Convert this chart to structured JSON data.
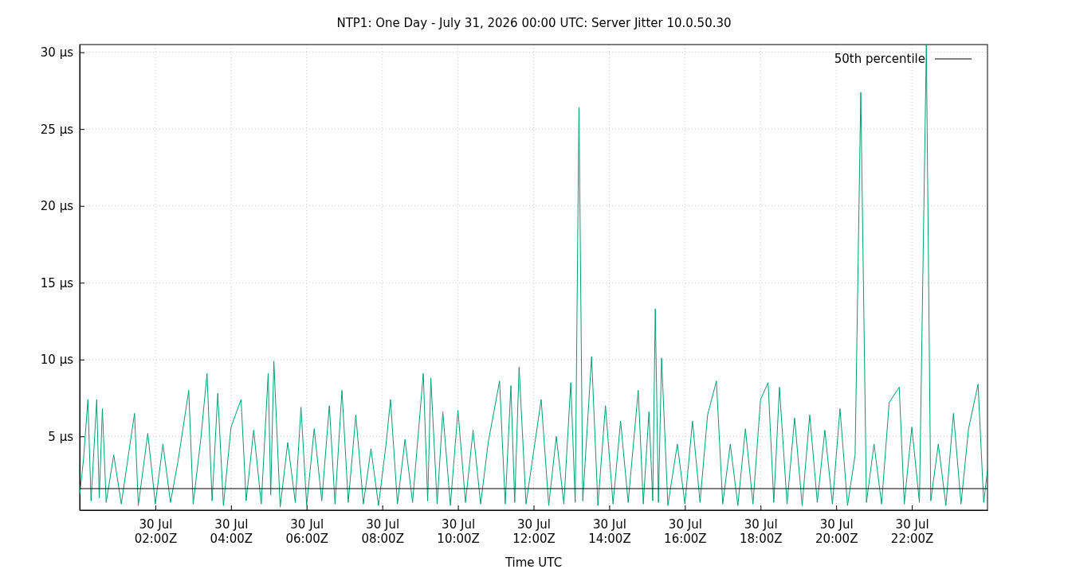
{
  "chart_data": {
    "type": "line",
    "title": "NTP1: One Day - July 31, 2026 00:00 UTC: Server Jitter 10.0.50.30",
    "xlabel": "Time UTC",
    "xlim": [
      "2026-07-30T00:00",
      "2026-07-31T00:00"
    ],
    "ylim": [
      0.2,
      30.5
    ],
    "xticks": [
      {
        "value": "2026-07-30T02:00",
        "label": "30 Jul\n02:00Z"
      },
      {
        "value": "2026-07-30T04:00",
        "label": "30 Jul\n04:00Z"
      },
      {
        "value": "2026-07-30T06:00",
        "label": "30 Jul\n06:00Z"
      },
      {
        "value": "2026-07-30T08:00",
        "label": "30 Jul\n08:00Z"
      },
      {
        "value": "2026-07-30T10:00",
        "label": "30 Jul\n10:00Z"
      },
      {
        "value": "2026-07-30T12:00",
        "label": "30 Jul\n12:00Z"
      },
      {
        "value": "2026-07-30T14:00",
        "label": "30 Jul\n14:00Z"
      },
      {
        "value": "2026-07-30T16:00",
        "label": "30 Jul\n16:00Z"
      },
      {
        "value": "2026-07-30T18:00",
        "label": "30 Jul\n18:00Z"
      },
      {
        "value": "2026-07-30T20:00",
        "label": "30 Jul\n20:00Z"
      },
      {
        "value": "2026-07-30T22:00",
        "label": "30 Jul\n22:00Z"
      }
    ],
    "yticks": [
      {
        "value": 5,
        "label": "5 µs"
      },
      {
        "value": 10,
        "label": "10 µs"
      },
      {
        "value": 15,
        "label": "15 µs"
      },
      {
        "value": 20,
        "label": "20 µs"
      },
      {
        "value": 25,
        "label": "25 µs"
      },
      {
        "value": 30,
        "label": "30 µs"
      }
    ],
    "grid": true,
    "legend": "top right",
    "series": [
      {
        "color": "#00a070",
        "x": [
          "2026-07-30T00:00",
          "2026-07-30T00:06",
          "2026-07-30T00:13",
          "2026-07-30T00:18",
          "2026-07-30T00:27",
          "2026-07-30T00:31",
          "2026-07-30T00:36",
          "2026-07-30T00:42",
          "2026-07-30T00:54",
          "2026-07-30T01:06",
          "2026-07-30T01:18",
          "2026-07-30T01:27",
          "2026-07-30T01:33",
          "2026-07-30T01:48",
          "2026-07-30T02:00",
          "2026-07-30T02:12",
          "2026-07-30T02:24",
          "2026-07-30T02:36",
          "2026-07-30T02:53",
          "2026-07-30T03:00",
          "2026-07-30T03:12",
          "2026-07-30T03:22",
          "2026-07-30T03:30",
          "2026-07-30T03:39",
          "2026-07-30T03:48",
          "2026-07-30T04:00",
          "2026-07-30T04:16",
          "2026-07-30T04:24",
          "2026-07-30T04:36",
          "2026-07-30T04:48",
          "2026-07-30T04:59",
          "2026-07-30T05:03",
          "2026-07-30T05:08",
          "2026-07-30T05:18",
          "2026-07-30T05:30",
          "2026-07-30T05:42",
          "2026-07-30T05:51",
          "2026-07-30T06:00",
          "2026-07-30T06:12",
          "2026-07-30T06:24",
          "2026-07-30T06:36",
          "2026-07-30T06:45",
          "2026-07-30T06:56",
          "2026-07-30T07:06",
          "2026-07-30T07:18",
          "2026-07-30T07:30",
          "2026-07-30T07:42",
          "2026-07-30T07:54",
          "2026-07-30T08:06",
          "2026-07-30T08:13",
          "2026-07-30T08:24",
          "2026-07-30T08:36",
          "2026-07-30T08:48",
          "2026-07-30T09:05",
          "2026-07-30T09:12",
          "2026-07-30T09:17",
          "2026-07-30T09:27",
          "2026-07-30T09:36",
          "2026-07-30T09:48",
          "2026-07-30T10:00",
          "2026-07-30T10:12",
          "2026-07-30T10:24",
          "2026-07-30T10:36",
          "2026-07-30T10:48",
          "2026-07-30T11:06",
          "2026-07-30T11:15",
          "2026-07-30T11:24",
          "2026-07-30T11:30",
          "2026-07-30T11:37",
          "2026-07-30T11:48",
          "2026-07-30T12:00",
          "2026-07-30T12:12",
          "2026-07-30T12:24",
          "2026-07-30T12:36",
          "2026-07-30T12:48",
          "2026-07-30T12:59",
          "2026-07-30T13:06",
          "2026-07-30T13:12",
          "2026-07-30T13:18",
          "2026-07-30T13:32",
          "2026-07-30T13:42",
          "2026-07-30T13:54",
          "2026-07-30T14:06",
          "2026-07-30T14:18",
          "2026-07-30T14:30",
          "2026-07-30T14:46",
          "2026-07-30T14:54",
          "2026-07-30T15:03",
          "2026-07-30T15:09",
          "2026-07-30T15:13",
          "2026-07-30T15:18",
          "2026-07-30T15:23",
          "2026-07-30T15:33",
          "2026-07-30T15:48",
          "2026-07-30T16:00",
          "2026-07-30T16:12",
          "2026-07-30T16:24",
          "2026-07-30T16:36",
          "2026-07-30T16:50",
          "2026-07-30T17:00",
          "2026-07-30T17:12",
          "2026-07-30T17:24",
          "2026-07-30T17:36",
          "2026-07-30T17:48",
          "2026-07-30T18:00",
          "2026-07-30T18:12",
          "2026-07-30T18:21",
          "2026-07-30T18:30",
          "2026-07-30T18:42",
          "2026-07-30T18:54",
          "2026-07-30T19:06",
          "2026-07-30T19:18",
          "2026-07-30T19:30",
          "2026-07-30T19:42",
          "2026-07-30T19:54",
          "2026-07-30T20:06",
          "2026-07-30T20:18",
          "2026-07-30T20:30",
          "2026-07-30T20:39",
          "2026-07-30T20:48",
          "2026-07-30T21:00",
          "2026-07-30T21:12",
          "2026-07-30T21:24",
          "2026-07-30T21:40",
          "2026-07-30T21:48",
          "2026-07-30T22:00",
          "2026-07-30T22:12",
          "2026-07-30T22:23",
          "2026-07-30T22:30",
          "2026-07-30T22:42",
          "2026-07-30T22:54",
          "2026-07-30T23:06",
          "2026-07-30T23:18",
          "2026-07-30T23:30",
          "2026-07-30T23:45",
          "2026-07-30T23:54",
          "2026-07-31T00:00"
        ],
        "values": [
          1.2,
          3.5,
          7.4,
          0.8,
          7.4,
          1.0,
          6.8,
          0.7,
          3.8,
          0.6,
          4.0,
          6.5,
          0.5,
          5.2,
          0.6,
          4.5,
          0.7,
          3.4,
          8.0,
          0.6,
          4.8,
          9.1,
          0.8,
          7.8,
          0.5,
          5.6,
          7.4,
          0.8,
          5.4,
          0.6,
          9.1,
          1.2,
          9.9,
          0.4,
          4.6,
          0.7,
          6.9,
          0.5,
          5.5,
          0.8,
          7.0,
          0.6,
          8.0,
          0.7,
          6.4,
          0.6,
          4.2,
          0.5,
          4.5,
          7.4,
          0.6,
          4.8,
          0.7,
          9.1,
          0.8,
          8.8,
          0.6,
          6.6,
          0.5,
          6.7,
          0.7,
          5.4,
          0.6,
          4.6,
          8.6,
          0.6,
          8.3,
          0.7,
          9.5,
          0.6,
          4.0,
          7.4,
          0.5,
          5.0,
          0.6,
          8.5,
          0.7,
          26.4,
          0.8,
          10.2,
          0.5,
          7.0,
          0.6,
          6.0,
          0.7,
          8.0,
          0.6,
          6.6,
          0.8,
          13.3,
          0.7,
          10.1,
          0.5,
          4.5,
          0.6,
          6.0,
          0.7,
          6.4,
          8.6,
          0.6,
          4.5,
          0.5,
          5.5,
          0.6,
          7.4,
          8.5,
          0.7,
          8.2,
          0.6,
          6.2,
          0.5,
          6.4,
          0.7,
          5.4,
          0.6,
          6.8,
          0.5,
          3.8,
          27.4,
          0.7,
          4.5,
          0.6,
          7.2,
          8.2,
          0.6,
          5.6,
          0.7,
          30.5,
          0.8,
          4.5,
          0.5,
          6.5,
          0.6,
          5.5,
          8.4,
          0.7,
          2.8
        ]
      },
      {
        "name": "50th percentile",
        "color": "#000000",
        "x": [
          "2026-07-30T00:00",
          "2026-07-31T00:00"
        ],
        "values": [
          1.6,
          1.6
        ]
      }
    ]
  }
}
